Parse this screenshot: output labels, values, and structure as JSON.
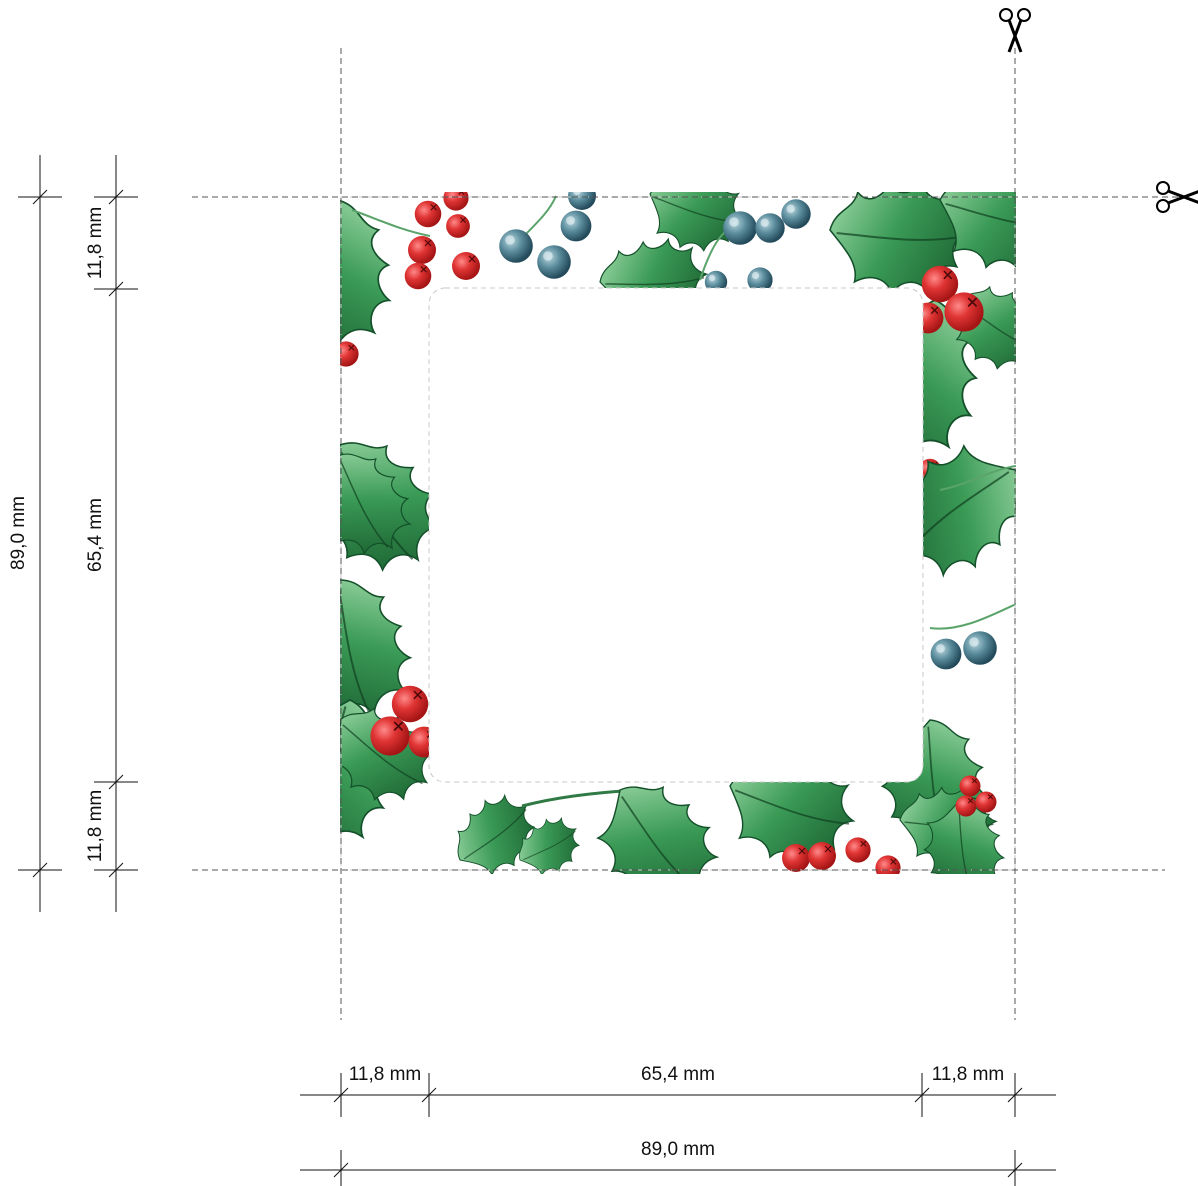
{
  "dimensions": {
    "width_margin_left": "11,8 mm",
    "width_center": "65,4 mm",
    "width_margin_right": "11,8 mm",
    "width_total": "89,0 mm",
    "height_margin_top": "11,8 mm",
    "height_center": "65,4 mm",
    "height_margin_bottom": "11,8 mm",
    "height_total": "89,0 mm"
  },
  "icons": {
    "cut_mark_top": "scissors-icon",
    "cut_mark_right": "scissors-icon"
  },
  "colors": {
    "leaf_dark": "#1f6e3a",
    "leaf_mid": "#2f8f4e",
    "leaf_light": "#8fcf9a",
    "berry_red": "#d42a2a",
    "berry_blue": "#3f6f80",
    "cut_line": "#555555",
    "inner_window": "#ffffff"
  }
}
